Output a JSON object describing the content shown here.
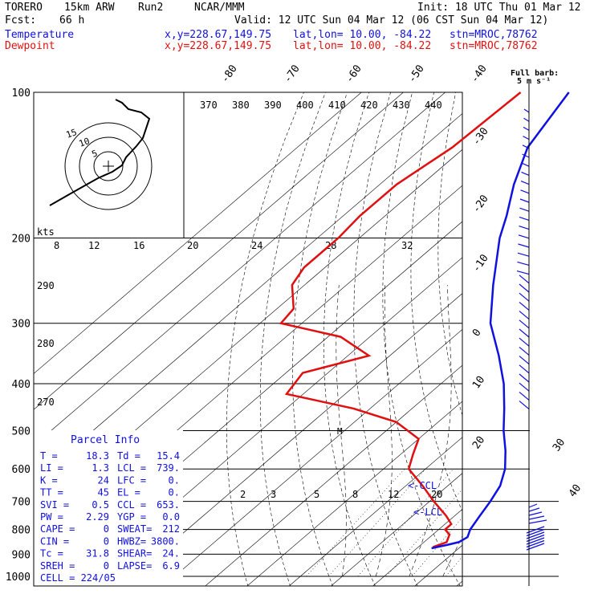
{
  "header": {
    "model": "TORERO",
    "res": "15km ARW",
    "run": "Run2",
    "source": "NCAR/MMM",
    "init": "Init: 18 UTC Thu 01 Mar 12",
    "fcst_label": "Fcst:",
    "fcst_hours": "66 h",
    "valid": "Valid: 12 UTC Sun 04 Mar 12 (06 CST Sun 04 Mar 12)"
  },
  "legend": [
    {
      "name": "Temperature",
      "color": "#1010e0",
      "xy": "x,y=228.67,149.75",
      "latlon": "lat,lon= 10.00, -84.22",
      "stn": "stn=MROC,78762"
    },
    {
      "name": "Dewpoint",
      "color": "#e01010",
      "xy": "x,y=228.67,149.75",
      "latlon": "lat,lon= 10.00, -84.22",
      "stn": "stn=MROC,78762"
    }
  ],
  "barb_key": {
    "line1": "Full barb:",
    "line2": "5 m s⁻¹"
  },
  "hodo_kts": "kts",
  "hodo_rings": [
    "15",
    "10",
    "5"
  ],
  "parcel_info": {
    "title": "Parcel Info",
    "rows": [
      [
        "T   =",
        "18.3",
        "Td =",
        "15.4"
      ],
      [
        "LI  =",
        "1.3",
        "LCL =",
        "739."
      ],
      [
        "K   =",
        "24",
        "LFC =",
        "0."
      ],
      [
        "TT  =",
        "45",
        "EL =",
        "0."
      ],
      [
        "SVI =",
        "0.5",
        "CCL =",
        "653."
      ],
      [
        "PW  =",
        "2.29",
        "YGP =",
        "0.0"
      ],
      [
        "CAPE =",
        "0",
        "SWEAT=",
        "212"
      ],
      [
        "CIN  =",
        "0",
        "HWBZ=",
        "3800."
      ],
      [
        "Tc  =",
        "31.8",
        "SHEAR=",
        "24."
      ],
      [
        "SREH =",
        "0",
        "LAPSE=",
        "6.9"
      ],
      [
        "CELL = 224/05",
        "",
        "",
        ""
      ]
    ]
  },
  "labels": {
    "ccl": "<-CCL",
    "lcl": "<-LCL",
    "parcel_marker": "M"
  },
  "chart_data": {
    "type": "line",
    "title": "",
    "xlabel": "",
    "ylabel": "",
    "y_scale": "log pressure (hPa)",
    "pressure_ticks": [
      100,
      200,
      300,
      400,
      500,
      600,
      700,
      800,
      900,
      1000
    ],
    "isotherm_labels": [
      -80,
      -70,
      -60,
      -50,
      -40,
      -30,
      -20,
      -10,
      0,
      10,
      20,
      30,
      40
    ],
    "theta_labels": [
      370,
      380,
      390,
      400,
      410,
      420,
      430,
      440
    ],
    "theta_labels_left": [
      290,
      280,
      270
    ],
    "mixing_ratio_top": [
      8,
      12,
      16,
      20,
      24,
      28,
      32
    ],
    "mixing_ratio_bottom": [
      2,
      3,
      5,
      8,
      12,
      20
    ],
    "series": [
      {
        "name": "Temperature",
        "color": "#1010e0",
        "points": [
          [
            100,
            -80.5
          ],
          [
            130,
            -75
          ],
          [
            155,
            -68
          ],
          [
            180,
            -61
          ],
          [
            200,
            -56.5
          ],
          [
            250,
            -45
          ],
          [
            300,
            -35
          ],
          [
            350,
            -24
          ],
          [
            400,
            -15
          ],
          [
            450,
            -8
          ],
          [
            500,
            -2
          ],
          [
            550,
            4
          ],
          [
            600,
            9
          ],
          [
            650,
            12.5
          ],
          [
            700,
            14.5
          ],
          [
            750,
            16
          ],
          [
            800,
            17.5
          ],
          [
            830,
            19
          ],
          [
            850,
            18.3
          ],
          [
            860,
            16.5
          ],
          [
            875,
            13.5
          ]
        ]
      },
      {
        "name": "Dewpoint",
        "color": "#e01010",
        "points": [
          [
            100,
            -92
          ],
          [
            130,
            -93
          ],
          [
            155,
            -96
          ],
          [
            180,
            -96
          ],
          [
            200,
            -95
          ],
          [
            230,
            -95
          ],
          [
            250,
            -93
          ],
          [
            280,
            -86
          ],
          [
            300,
            -85
          ],
          [
            320,
            -67
          ],
          [
            350,
            -55
          ],
          [
            380,
            -66
          ],
          [
            420,
            -64
          ],
          [
            450,
            -44
          ],
          [
            480,
            -30
          ],
          [
            520,
            -20
          ],
          [
            560,
            -17
          ],
          [
            600,
            -14
          ],
          [
            650,
            -6
          ],
          [
            700,
            1
          ],
          [
            750,
            8
          ],
          [
            780,
            11.5
          ],
          [
            800,
            11.5
          ],
          [
            820,
            14
          ],
          [
            850,
            15.4
          ],
          [
            870,
            13.5
          ]
        ]
      }
    ]
  }
}
